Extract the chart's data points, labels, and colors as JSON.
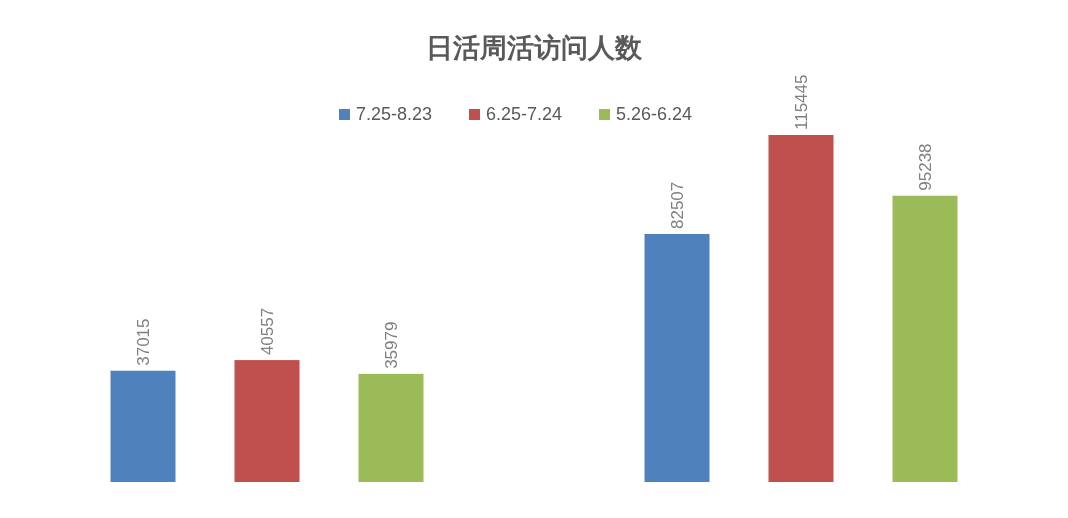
{
  "chart_data": {
    "type": "bar",
    "title": "日活周活访问人数",
    "categories": [
      null,
      null
    ],
    "legend": "top",
    "data_labels": true,
    "series": [
      {
        "name": "7.25-8.23",
        "color": "#4f81bd",
        "values": [
          37015,
          82507
        ]
      },
      {
        "name": "6.25-7.24",
        "color": "#c0504d",
        "values": [
          40557,
          115445
        ]
      },
      {
        "name": "5.26-6.24",
        "color": "#9bbb59",
        "values": [
          35979,
          95238
        ]
      }
    ]
  }
}
